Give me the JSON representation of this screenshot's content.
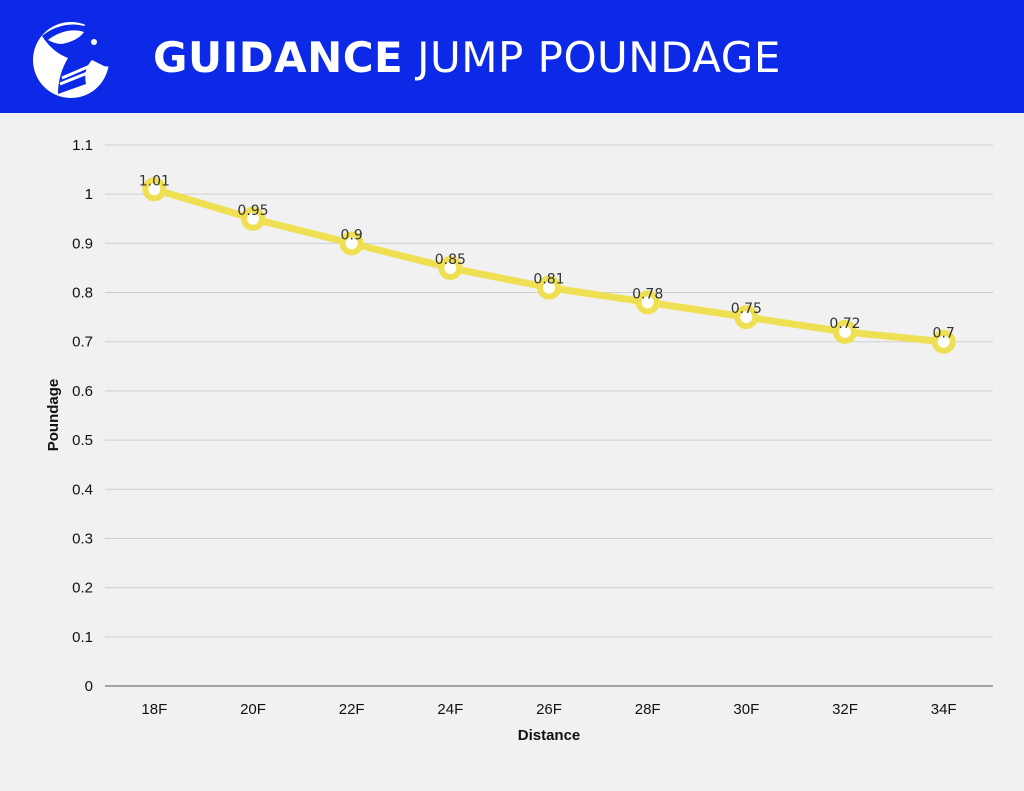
{
  "header": {
    "title_bold": "GUIDANCE",
    "title_light": "JUMP POUNDAGE",
    "brand_color": "#0b29e6",
    "logo_icon": "horse-head-logo-icon"
  },
  "chart_data": {
    "type": "line",
    "title": "GUIDANCE JUMP POUNDAGE",
    "categories": [
      "18F",
      "20F",
      "22F",
      "24F",
      "26F",
      "28F",
      "30F",
      "32F",
      "34F"
    ],
    "series": [
      {
        "name": "Poundage",
        "values": [
          1.01,
          0.95,
          0.9,
          0.85,
          0.81,
          0.78,
          0.75,
          0.72,
          0.7
        ],
        "color": "#efdf52"
      }
    ],
    "data_labels": [
      "1.01",
      "0.95",
      "0.9",
      "0.85",
      "0.81",
      "0.78",
      "0.75",
      "0.72",
      "0.7"
    ],
    "y_ticks": [
      "0",
      "0.1",
      "0.2",
      "0.3",
      "0.4",
      "0.5",
      "0.6",
      "0.7",
      "0.8",
      "0.9",
      "1",
      "1.1"
    ],
    "xlabel": "Distance",
    "ylabel": "Poundage",
    "ylim": [
      0,
      1.1
    ],
    "grid": true,
    "legend": "none"
  }
}
